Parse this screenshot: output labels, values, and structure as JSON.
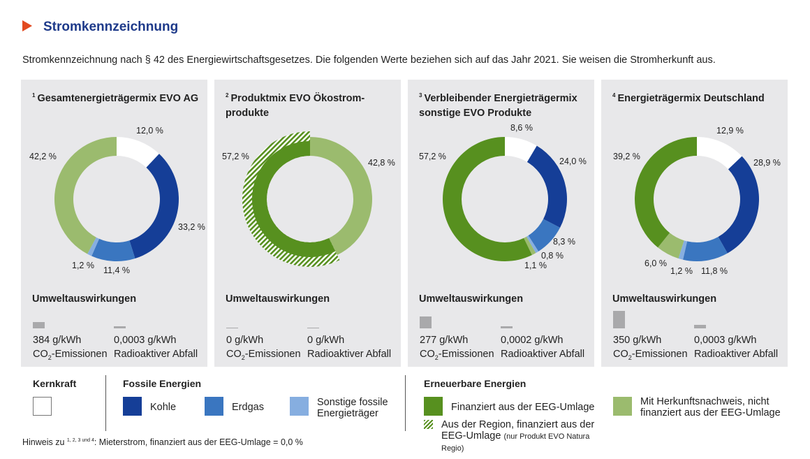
{
  "header": {
    "title": "Stromkennzeichnung",
    "intro": "Stromkennzeichnung nach § 42 des Energiewirtschaftsgesetzes. Die folgenden Werte beziehen sich auf das Jahr 2021. Sie weisen die Stromherkunft aus."
  },
  "colors": {
    "kernkraft": "#ffffff",
    "kohle": "#153e97",
    "erdgas": "#3a76c0",
    "sonstige": "#86aee0",
    "eeg": "#57901f",
    "herkunft": "#9bbb6e",
    "panel": "#e8e8ea",
    "title": "#1e3a8a",
    "arrow": "#e2491f"
  },
  "chart_data": [
    {
      "type": "pie",
      "title_sup": "1",
      "title": "Gesamtenergieträgermix EVO AG",
      "categories": [
        "Kernkraft",
        "Kohle",
        "Erdgas",
        "Sonstige fossile Energieträger",
        "Mit Herkunftsnachweis, nicht finanziert aus der EEG-Umlage"
      ],
      "values": [
        12.0,
        33.2,
        11.4,
        1.2,
        42.2
      ],
      "labels": [
        "12,0 %",
        "33,2 %",
        "11,4 %",
        "1,2 %",
        "42,2 %"
      ]
    },
    {
      "type": "pie",
      "title_sup": "2",
      "title": "Produktmix EVO Ökostrom-produkte",
      "categories": [
        "Mit Herkunftsnachweis, nicht finanziert aus der EEG-Umlage",
        "Aus der Region, finanziert aus der EEG-Umlage"
      ],
      "values": [
        42.8,
        57.2
      ],
      "labels": [
        "42,8 %",
        "57,2 %"
      ]
    },
    {
      "type": "pie",
      "title_sup": "3",
      "title": "Verbleibender Energieträgermix sonstige EVO Produkte",
      "categories": [
        "Kernkraft",
        "Kohle",
        "Erdgas",
        "Sonstige fossile Energieträger",
        "Mit Herkunftsnachweis, nicht finanziert aus der EEG-Umlage",
        "Finanziert aus der EEG-Umlage"
      ],
      "values": [
        8.6,
        24.0,
        8.3,
        0.8,
        1.1,
        57.2
      ],
      "labels": [
        "8,6 %",
        "24,0 %",
        "8,3 %",
        "0,8 %",
        "1,1 %",
        "57,2 %"
      ]
    },
    {
      "type": "pie",
      "title_sup": "4",
      "title": "Energieträgermix Deutschland",
      "categories": [
        "Kernkraft",
        "Kohle",
        "Erdgas",
        "Sonstige fossile Energieträger",
        "Mit Herkunftsnachweis, nicht finanziert aus der EEG-Umlage",
        "Finanziert aus der EEG-Umlage"
      ],
      "values": [
        12.9,
        28.9,
        11.8,
        1.2,
        6.0,
        39.2
      ],
      "labels": [
        "12,9 %",
        "28,9 %",
        "11,8 %",
        "1,2 %",
        "6,0 %",
        "39,2 %"
      ]
    }
  ],
  "impact": {
    "heading": "Umweltauswirkungen",
    "co2_label": "CO",
    "co2_sub": "2",
    "co2_suffix": "-Emissionen",
    "waste_label": "Radioaktiver Abfall",
    "panels": [
      {
        "co2": "384 g/kWh",
        "waste": "0,0003 g/kWh"
      },
      {
        "co2": "0 g/kWh",
        "waste": "0 g/kWh"
      },
      {
        "co2": "277 g/kWh",
        "waste": "0,0002 g/kWh"
      },
      {
        "co2": "350 g/kWh",
        "waste": "0,0003 g/kWh"
      }
    ]
  },
  "legend": {
    "kernkraft_heading": "Kernkraft",
    "fossil_heading": "Fossile Energien",
    "kohle": "Kohle",
    "erdgas": "Erdgas",
    "sonstige": "Sonstige fossile Energieträger",
    "renew_heading": "Erneuerbare Energien",
    "eeg": "Finanziert aus der EEG-Umlage",
    "herkunft": "Mit Herkunftsnachweis, nicht finanziert aus der EEG-Umlage",
    "region": "Aus der Region, finanziert aus der EEG-Umlage",
    "region_note": "(nur Produkt EVO Natura Regio)"
  },
  "note": {
    "prefix": "Hinweis zu ",
    "sup": "1, 2, 3 und 4",
    "text": ": Mieterstrom, finanziert aus der EEG-Umlage = 0,0 %"
  }
}
